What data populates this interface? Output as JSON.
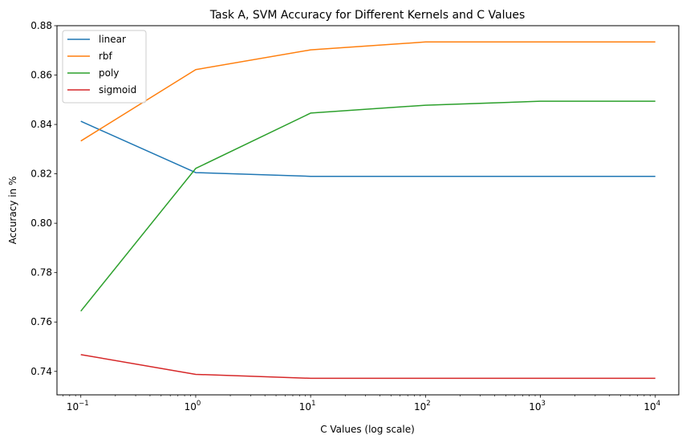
{
  "chart_data": {
    "type": "line",
    "title": "Task A, SVM Accuracy for Different Kernels and C Values",
    "xlabel": "C Values (log scale)",
    "ylabel": "Accuracy in %",
    "xscale": "log",
    "x": [
      0.1,
      1,
      10,
      100,
      1000,
      10000
    ],
    "xlim": [
      0.062,
      16000
    ],
    "ylim": [
      0.7305,
      0.88
    ],
    "x_ticks": [
      {
        "value": 0.1,
        "base": "10",
        "exp": "−1"
      },
      {
        "value": 1,
        "base": "10",
        "exp": "0"
      },
      {
        "value": 10,
        "base": "10",
        "exp": "1"
      },
      {
        "value": 100,
        "base": "10",
        "exp": "2"
      },
      {
        "value": 1000,
        "base": "10",
        "exp": "3"
      },
      {
        "value": 10000,
        "base": "10",
        "exp": "4"
      }
    ],
    "y_ticks": [
      {
        "value": 0.74,
        "label": "0.74"
      },
      {
        "value": 0.76,
        "label": "0.76"
      },
      {
        "value": 0.78,
        "label": "0.78"
      },
      {
        "value": 0.8,
        "label": "0.80"
      },
      {
        "value": 0.82,
        "label": "0.82"
      },
      {
        "value": 0.84,
        "label": "0.84"
      },
      {
        "value": 0.86,
        "label": "0.86"
      },
      {
        "value": 0.88,
        "label": "0.88"
      }
    ],
    "grid": false,
    "legend_position": "top-left",
    "series": [
      {
        "name": "linear",
        "color": "#1f77b4",
        "values": [
          0.8413,
          0.8205,
          0.819,
          0.819,
          0.819,
          0.819
        ]
      },
      {
        "name": "rbf",
        "color": "#ff7f0e",
        "values": [
          0.8333,
          0.8622,
          0.8702,
          0.8734,
          0.8734,
          0.8734
        ]
      },
      {
        "name": "poly",
        "color": "#2ca02c",
        "values": [
          0.7644,
          0.8222,
          0.8446,
          0.8478,
          0.8494,
          0.8494
        ]
      },
      {
        "name": "sigmoid",
        "color": "#d62728",
        "values": [
          0.7468,
          0.7388,
          0.7372,
          0.7372,
          0.7372,
          0.7372
        ]
      }
    ]
  }
}
